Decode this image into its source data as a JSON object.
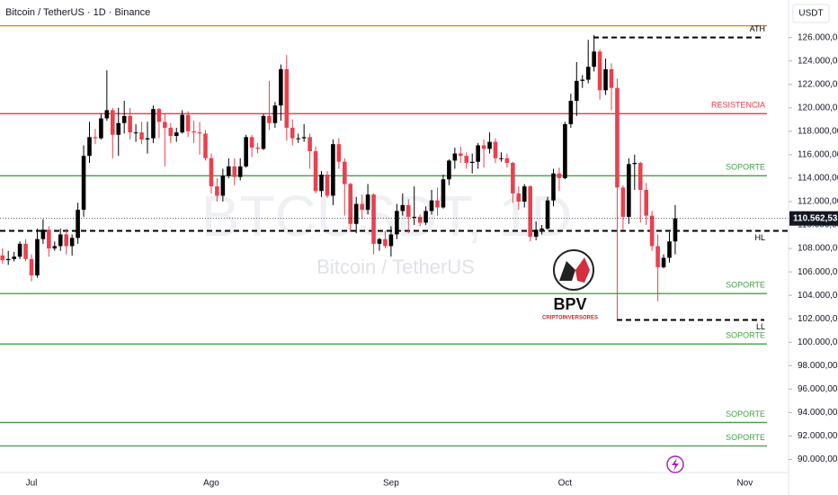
{
  "chart_data": {
    "type": "candlestick",
    "title": "Bitcoin / TetherUS · 1D · Binance",
    "currency": "USDT",
    "watermark": "BTCUSDT, 1D",
    "watermark_sub": "Bitcoin / TetherUS",
    "logo": "BPV",
    "logo_sub": "CRIPTOINVERSORES",
    "last_price_label": "110.562,53",
    "up_color": "#000000",
    "down_color": "#e8414f",
    "categories": [
      null,
      null,
      null,
      null,
      null,
      "Jul",
      null,
      null,
      null,
      null,
      null,
      null,
      null,
      null,
      null,
      null,
      null,
      null,
      null,
      null,
      null,
      null,
      null,
      null,
      null,
      null,
      null,
      null,
      null,
      null,
      null,
      null,
      null,
      null,
      null,
      null,
      "Ago",
      null,
      null,
      null,
      null,
      null,
      null,
      null,
      null,
      null,
      null,
      null,
      null,
      null,
      null,
      null,
      null,
      null,
      null,
      null,
      null,
      null,
      null,
      null,
      null,
      null,
      null,
      null,
      null,
      null,
      null,
      "Sep",
      null,
      null,
      null,
      null,
      null,
      null,
      null,
      null,
      null,
      null,
      null,
      null,
      null,
      null,
      null,
      null,
      null,
      null,
      null,
      null,
      null,
      null,
      null,
      null,
      null,
      null,
      null,
      null,
      null,
      "Oct",
      null,
      null,
      null,
      null,
      null,
      null,
      null,
      null,
      null,
      null,
      null,
      null,
      null,
      null,
      null,
      null,
      null,
      null,
      null,
      null,
      null,
      null,
      null,
      null,
      null,
      null,
      null,
      null,
      null,
      null,
      "Nov"
    ],
    "open": [
      107400,
      107000,
      107100,
      107300,
      108400,
      107100,
      105700,
      108800,
      109600,
      108000,
      108200,
      109200,
      108200,
      108900,
      111300,
      115900,
      117500,
      117400,
      119100,
      119800,
      117700,
      118700,
      119300,
      117900,
      117900,
      117300,
      117400,
      119900,
      118800,
      118300,
      117600,
      117900,
      119400,
      118000,
      117900,
      117800,
      115700,
      113300,
      112500,
      114200,
      115000,
      114100,
      115000,
      117500,
      116600,
      116500,
      119300,
      118700,
      120200,
      123300,
      118300,
      117400,
      117400,
      117500,
      116300,
      112900,
      114300,
      112500,
      116900,
      115400,
      113500,
      110100,
      111800,
      111300,
      112600,
      108400,
      108800,
      108200,
      109200,
      111200,
      111700,
      110700,
      110700,
      110200,
      111200,
      112100,
      111500,
      113900,
      115500,
      116100,
      115900,
      115300,
      115400,
      116800,
      116500,
      117100,
      115700,
      115700,
      115300,
      112700,
      112000,
      113300,
      109000,
      109600,
      109700,
      112100,
      114400,
      114000,
      118600,
      120600,
      122300,
      122400,
      123500,
      124800,
      121500,
      123300,
      121700,
      113200,
      110700,
      115200,
      115300,
      113000,
      110800,
      108200,
      106400,
      107200,
      108600,
      null,
      null,
      null,
      null,
      null,
      null,
      null,
      null,
      null,
      null,
      null,
      null
    ],
    "high": [
      108000,
      107800,
      107700,
      108600,
      108800,
      107500,
      109700,
      110500,
      109900,
      108600,
      109700,
      109700,
      109200,
      111900,
      116800,
      118800,
      118200,
      119500,
      123200,
      120000,
      120000,
      120600,
      120000,
      118600,
      118800,
      118800,
      120200,
      120000,
      119500,
      118700,
      118300,
      119800,
      119700,
      118900,
      118800,
      118100,
      116100,
      114000,
      114800,
      115700,
      115700,
      115700,
      117700,
      117700,
      117000,
      119500,
      122300,
      120500,
      123700,
      124500,
      119000,
      117800,
      118600,
      117800,
      116700,
      114600,
      114600,
      117300,
      117400,
      115700,
      113600,
      112400,
      112600,
      113500,
      112700,
      108900,
      109500,
      109900,
      111800,
      112700,
      112200,
      113300,
      110900,
      111600,
      113000,
      113200,
      114300,
      115600,
      116600,
      116700,
      116200,
      116100,
      117000,
      117300,
      117900,
      117400,
      116200,
      116100,
      115400,
      113300,
      113500,
      113400,
      110300,
      110000,
      112400,
      114800,
      114900,
      118800,
      121200,
      123900,
      122800,
      125800,
      126200,
      125000,
      124200,
      123800,
      122500,
      113400,
      115700,
      116000,
      115400,
      113600,
      111200,
      109200,
      107500,
      109400,
      111700,
      null,
      null,
      null,
      null,
      null,
      null,
      null,
      null,
      null,
      null,
      null,
      null
    ],
    "low": [
      106700,
      106600,
      106900,
      107100,
      106900,
      105200,
      105500,
      108400,
      107300,
      107800,
      107800,
      107500,
      107400,
      108400,
      110700,
      115300,
      116900,
      117300,
      118900,
      115700,
      115900,
      117800,
      117300,
      117100,
      116900,
      116100,
      117000,
      117400,
      115000,
      117000,
      117100,
      117800,
      117500,
      117000,
      116000,
      115500,
      112700,
      112000,
      112000,
      114000,
      113400,
      113800,
      114900,
      115800,
      116100,
      116400,
      118100,
      118300,
      118900,
      117200,
      116800,
      117000,
      117100,
      114800,
      112700,
      112400,
      112300,
      111700,
      114800,
      110800,
      109400,
      109300,
      110500,
      110900,
      107500,
      107800,
      108000,
      107300,
      108800,
      110800,
      109300,
      110000,
      109900,
      110000,
      110900,
      110800,
      111400,
      113400,
      114800,
      115300,
      114800,
      114400,
      114800,
      114900,
      116100,
      115300,
      115400,
      114900,
      111900,
      111300,
      111500,
      108600,
      108700,
      109200,
      109600,
      111600,
      112900,
      113900,
      118300,
      119300,
      121700,
      122100,
      123100,
      120700,
      121100,
      119800,
      102000,
      109600,
      110100,
      113000,
      110200,
      110000,
      107800,
      103500,
      106300,
      106800,
      107500,
      null,
      null,
      null,
      null,
      null,
      null,
      null,
      null,
      null,
      null,
      null,
      null
    ],
    "close": [
      107000,
      107100,
      107300,
      108400,
      107100,
      105700,
      108800,
      109600,
      108000,
      108200,
      109200,
      108200,
      108900,
      111300,
      115900,
      117500,
      117400,
      119100,
      119800,
      117700,
      118700,
      119300,
      117900,
      117900,
      117300,
      117400,
      119900,
      118800,
      118300,
      117600,
      117900,
      119400,
      118000,
      117900,
      117800,
      115700,
      113300,
      112500,
      114200,
      115000,
      114100,
      115000,
      117500,
      116600,
      116500,
      119300,
      118700,
      120200,
      123300,
      118300,
      117400,
      117400,
      117500,
      116300,
      112900,
      114300,
      112500,
      116900,
      115400,
      113500,
      110100,
      111800,
      111300,
      112600,
      108400,
      108800,
      108200,
      109200,
      111200,
      111700,
      110700,
      110700,
      110200,
      111200,
      112100,
      111500,
      113900,
      115500,
      116100,
      115900,
      115300,
      115400,
      116800,
      116500,
      117100,
      115700,
      115700,
      115300,
      112700,
      112000,
      113300,
      109000,
      109600,
      109700,
      112100,
      114400,
      114000,
      118600,
      120600,
      122300,
      122400,
      123500,
      124800,
      121500,
      123300,
      121700,
      113200,
      110700,
      115200,
      115300,
      113000,
      110800,
      108200,
      106400,
      107200,
      108600,
      110562.53,
      null,
      null,
      null,
      null,
      null,
      null,
      null,
      null,
      null,
      null,
      null,
      null
    ],
    "levels": [
      {
        "value": 127000,
        "color": "#f57c00"
      },
      {
        "label": "ATH",
        "value": 126000,
        "color": "#000000",
        "dashed": true
      },
      {
        "label": "RESISTENCIA",
        "value": 119500,
        "color": "#f23645"
      },
      {
        "label": "SOPORTE",
        "value": 114200,
        "color": "#43a047"
      },
      {
        "label": "HL",
        "value": 109500,
        "color": "#000000",
        "dashed": true
      },
      {
        "label": "SOPORTE",
        "value": 104150,
        "color": "#43a047"
      },
      {
        "label": "LL",
        "value": 101900,
        "color": "#000000",
        "dashed": true
      },
      {
        "label": "SOPORTE",
        "value": 99850,
        "color": "#43a047"
      },
      {
        "label": "SOPORTE",
        "value": 93150,
        "color": "#43a047"
      },
      {
        "label": "SOPORTE",
        "value": 91150,
        "color": "#43a047"
      }
    ],
    "ylim": [
      88500,
      129200
    ],
    "yticks": [
      {
        "value": 90000,
        "label": "90.000,00"
      },
      {
        "value": 92000,
        "label": "92.000,00"
      },
      {
        "value": 94000,
        "label": "94.000,00"
      },
      {
        "value": 96000,
        "label": "96.000,00"
      },
      {
        "value": 98000,
        "label": "98.000,00"
      },
      {
        "value": 100000,
        "label": "100.000,00"
      },
      {
        "value": 102000,
        "label": "102.000,00"
      },
      {
        "value": 104000,
        "label": "104.000,00"
      },
      {
        "value": 106000,
        "label": "106.000,00"
      },
      {
        "value": 108000,
        "label": "108.000,00"
      },
      {
        "value": 110000,
        "label": "110.000,00"
      },
      {
        "value": 112000,
        "label": "112.000,00"
      },
      {
        "value": 114000,
        "label": "114.000,00"
      },
      {
        "value": 116000,
        "label": "116.000,00"
      },
      {
        "value": 118000,
        "label": "118.000,00"
      },
      {
        "value": 120000,
        "label": "120.000,00"
      },
      {
        "value": 122000,
        "label": "122.000,00"
      },
      {
        "value": 124000,
        "label": "124.000,00"
      },
      {
        "value": 126000,
        "label": "126.000,00"
      }
    ]
  }
}
